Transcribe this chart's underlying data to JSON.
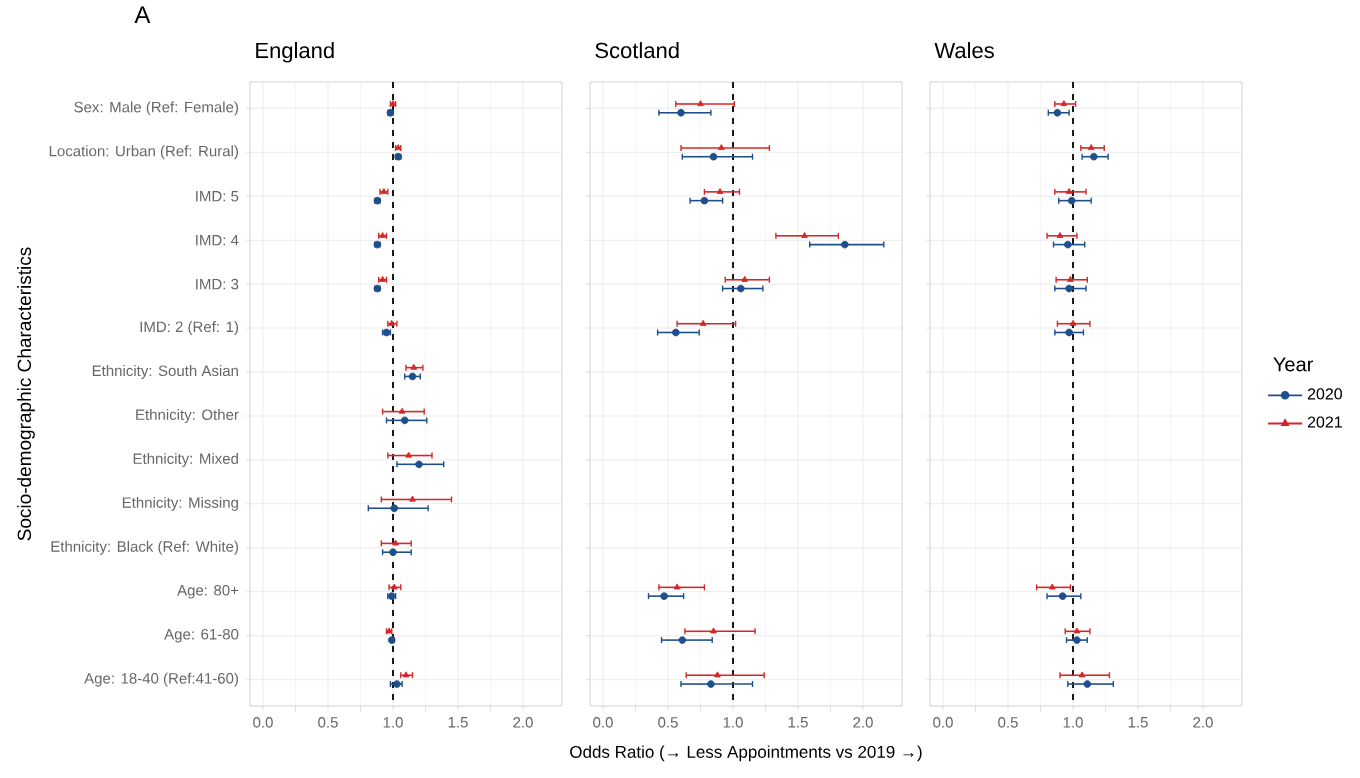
{
  "chart_data": [
    {
      "type": "scatter",
      "orientation": "horizontal",
      "title": "England",
      "annotations": [
        "A"
      ],
      "ylabel": "Socio-demographic Characteristics",
      "categories": [
        "Sex: Male (Ref: Female)",
        "Location: Urban (Ref: Rural)",
        "IMD: 5",
        "IMD: 4",
        "IMD: 3",
        "IMD: 2 (Ref: 1)",
        "Ethnicity: South Asian",
        "Ethnicity: Other",
        "Ethnicity: Mixed",
        "Ethnicity: Missing",
        "Ethnicity: Black (Ref: White)",
        "Age: 80+",
        "Age: 61-80",
        "Age: 18-40  (Ref:41-60)"
      ],
      "xlim": [
        -0.1,
        2.3
      ],
      "xticks": [
        {
          "value": 0,
          "label": "0.0"
        },
        {
          "value": 0.5,
          "label": "0.5"
        },
        {
          "value": 1,
          "label": "1.0"
        },
        {
          "value": 1.5,
          "label": "1.5"
        },
        {
          "value": 2,
          "label": "2.0"
        }
      ],
      "grid": true,
      "ref_lines": [
        {
          "axis": "x",
          "value": 1,
          "color": "#000000",
          "line_style": "dashed"
        }
      ],
      "series": [
        {
          "color": "#1f4e8c",
          "marker": "circle",
          "values": [
            0.98,
            1.04,
            0.88,
            0.88,
            0.88,
            0.95,
            1.15,
            1.09,
            1.2,
            1.01,
            1.0,
            0.99,
            0.99,
            1.03
          ],
          "errors": [
            [
              0.96,
              1.0
            ],
            [
              1.02,
              1.06
            ],
            [
              0.86,
              0.9
            ],
            [
              0.86,
              0.9
            ],
            [
              0.86,
              0.9
            ],
            [
              0.92,
              0.98
            ],
            [
              1.09,
              1.21
            ],
            [
              0.95,
              1.26
            ],
            [
              1.03,
              1.39
            ],
            [
              0.81,
              1.27
            ],
            [
              0.92,
              1.14
            ],
            [
              0.96,
              1.02
            ],
            [
              0.98,
              1.01
            ],
            [
              0.98,
              1.07
            ]
          ]
        },
        {
          "color": "#d62728",
          "marker": "triangle",
          "values": [
            1.0,
            1.04,
            0.93,
            0.92,
            0.92,
            0.99,
            1.16,
            1.07,
            1.12,
            1.15,
            1.02,
            1.01,
            0.97,
            1.1
          ],
          "errors": [
            [
              0.98,
              1.02
            ],
            [
              1.02,
              1.06
            ],
            [
              0.9,
              0.96
            ],
            [
              0.89,
              0.95
            ],
            [
              0.89,
              0.95
            ],
            [
              0.96,
              1.03
            ],
            [
              1.1,
              1.23
            ],
            [
              0.92,
              1.24
            ],
            [
              0.96,
              1.3
            ],
            [
              0.91,
              1.45
            ],
            [
              0.91,
              1.14
            ],
            [
              0.97,
              1.06
            ],
            [
              0.95,
              0.99
            ],
            [
              1.06,
              1.15
            ]
          ]
        }
      ]
    },
    {
      "type": "scatter",
      "orientation": "horizontal",
      "title": "Scotland",
      "xlabel": "Odds Ratio (→ Less Appointments vs 2019 →)",
      "tick_labels": "x",
      "xlim": [
        -0.1,
        2.3
      ],
      "xticks": [
        {
          "value": 0,
          "label": "0.0"
        },
        {
          "value": 0.5,
          "label": "0.5"
        },
        {
          "value": 1,
          "label": "1.0"
        },
        {
          "value": 1.5,
          "label": "1.5"
        },
        {
          "value": 2,
          "label": "2.0"
        }
      ],
      "grid": true,
      "ref_lines": [
        {
          "axis": "x",
          "value": 1,
          "color": "#000000",
          "line_style": "dashed"
        }
      ],
      "series": [
        {
          "color": "#1f4e8c",
          "marker": "circle",
          "values": [
            0.6,
            0.85,
            0.78,
            1.86,
            1.06,
            0.56,
            null,
            null,
            null,
            null,
            null,
            0.47,
            0.61,
            0.83
          ],
          "errors": [
            [
              0.43,
              0.83
            ],
            [
              0.61,
              1.15
            ],
            [
              0.67,
              0.92
            ],
            [
              1.59,
              2.16
            ],
            [
              0.92,
              1.23
            ],
            [
              0.42,
              0.74
            ],
            null,
            null,
            null,
            null,
            null,
            [
              0.35,
              0.62
            ],
            [
              0.45,
              0.84
            ],
            [
              0.6,
              1.15
            ]
          ]
        },
        {
          "color": "#d62728",
          "marker": "triangle",
          "values": [
            0.75,
            0.91,
            0.9,
            1.55,
            1.09,
            0.77,
            null,
            null,
            null,
            null,
            null,
            0.57,
            0.85,
            0.88
          ],
          "errors": [
            [
              0.56,
              1.01
            ],
            [
              0.6,
              1.28
            ],
            [
              0.78,
              1.05
            ],
            [
              1.33,
              1.81
            ],
            [
              0.94,
              1.28
            ],
            [
              0.57,
              1.02
            ],
            null,
            null,
            null,
            null,
            null,
            [
              0.43,
              0.78
            ],
            [
              0.63,
              1.17
            ],
            [
              0.64,
              1.24
            ]
          ]
        }
      ]
    },
    {
      "type": "scatter",
      "orientation": "horizontal",
      "title": "Wales",
      "tick_labels": "x",
      "legend": "right",
      "legend_title": "Year",
      "xlim": [
        -0.1,
        2.3
      ],
      "xticks": [
        {
          "value": 0,
          "label": "0.0"
        },
        {
          "value": 0.5,
          "label": "0.5"
        },
        {
          "value": 1,
          "label": "1.0"
        },
        {
          "value": 1.5,
          "label": "1.5"
        },
        {
          "value": 2,
          "label": "2.0"
        }
      ],
      "grid": true,
      "ref_lines": [
        {
          "axis": "x",
          "value": 1,
          "color": "#000000",
          "line_style": "dashed"
        }
      ],
      "series": [
        {
          "name": "2020",
          "color": "#1f4e8c",
          "marker": "circle",
          "values": [
            0.88,
            1.16,
            0.99,
            0.96,
            0.97,
            0.97,
            null,
            null,
            null,
            null,
            null,
            0.92,
            1.03,
            1.11
          ],
          "errors": [
            [
              0.81,
              0.97
            ],
            [
              1.07,
              1.27
            ],
            [
              0.89,
              1.14
            ],
            [
              0.85,
              1.09
            ],
            [
              0.86,
              1.1
            ],
            [
              0.86,
              1.08
            ],
            null,
            null,
            null,
            null,
            null,
            [
              0.8,
              1.06
            ],
            [
              0.95,
              1.11
            ],
            [
              0.96,
              1.31
            ]
          ]
        },
        {
          "name": "2021",
          "color": "#d62728",
          "marker": "triangle",
          "values": [
            0.93,
            1.14,
            0.97,
            0.9,
            0.98,
            1.0,
            null,
            null,
            null,
            null,
            null,
            0.84,
            1.03,
            1.07
          ],
          "errors": [
            [
              0.86,
              1.02
            ],
            [
              1.06,
              1.24
            ],
            [
              0.86,
              1.1
            ],
            [
              0.8,
              1.03
            ],
            [
              0.87,
              1.11
            ],
            [
              0.88,
              1.13
            ],
            null,
            null,
            null,
            null,
            null,
            [
              0.72,
              0.98
            ],
            [
              0.94,
              1.13
            ],
            [
              0.9,
              1.28
            ]
          ]
        }
      ]
    }
  ]
}
